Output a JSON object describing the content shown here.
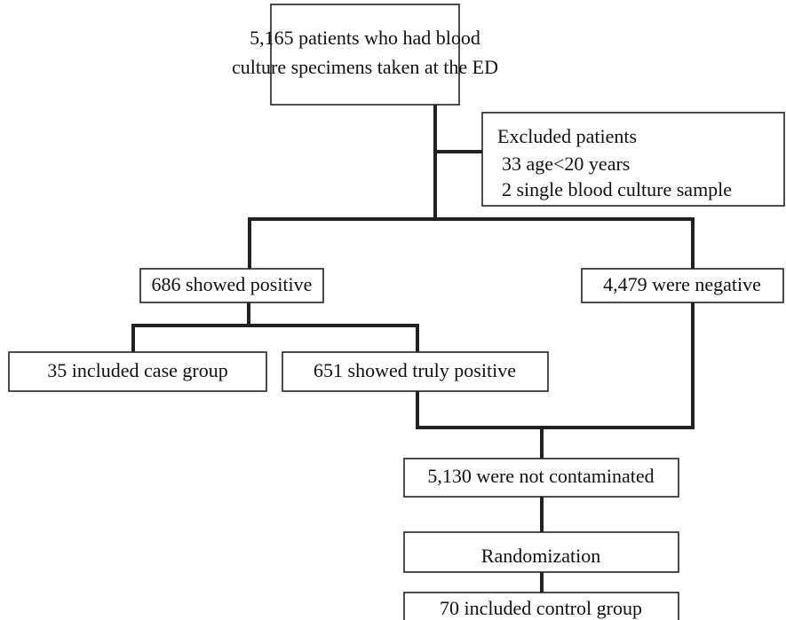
{
  "nodes": [
    {
      "lines": [
        "5,165 patients who had blood",
        "culture specimens taken at the ED"
      ]
    },
    {
      "lines": [
        "Excluded patients",
        "33 age<20 years",
        "2 single blood culture sample"
      ]
    },
    {
      "lines": [
        "686 showed positive"
      ]
    },
    {
      "lines": [
        "4,479 were negative"
      ]
    },
    {
      "lines": [
        "35 included case group"
      ]
    },
    {
      "lines": [
        "651 showed truly positive"
      ]
    },
    {
      "lines": [
        "5,130 were not contaminated"
      ]
    },
    {
      "lines": [
        "Randomization"
      ]
    },
    {
      "lines": [
        "70 included control group"
      ]
    }
  ]
}
